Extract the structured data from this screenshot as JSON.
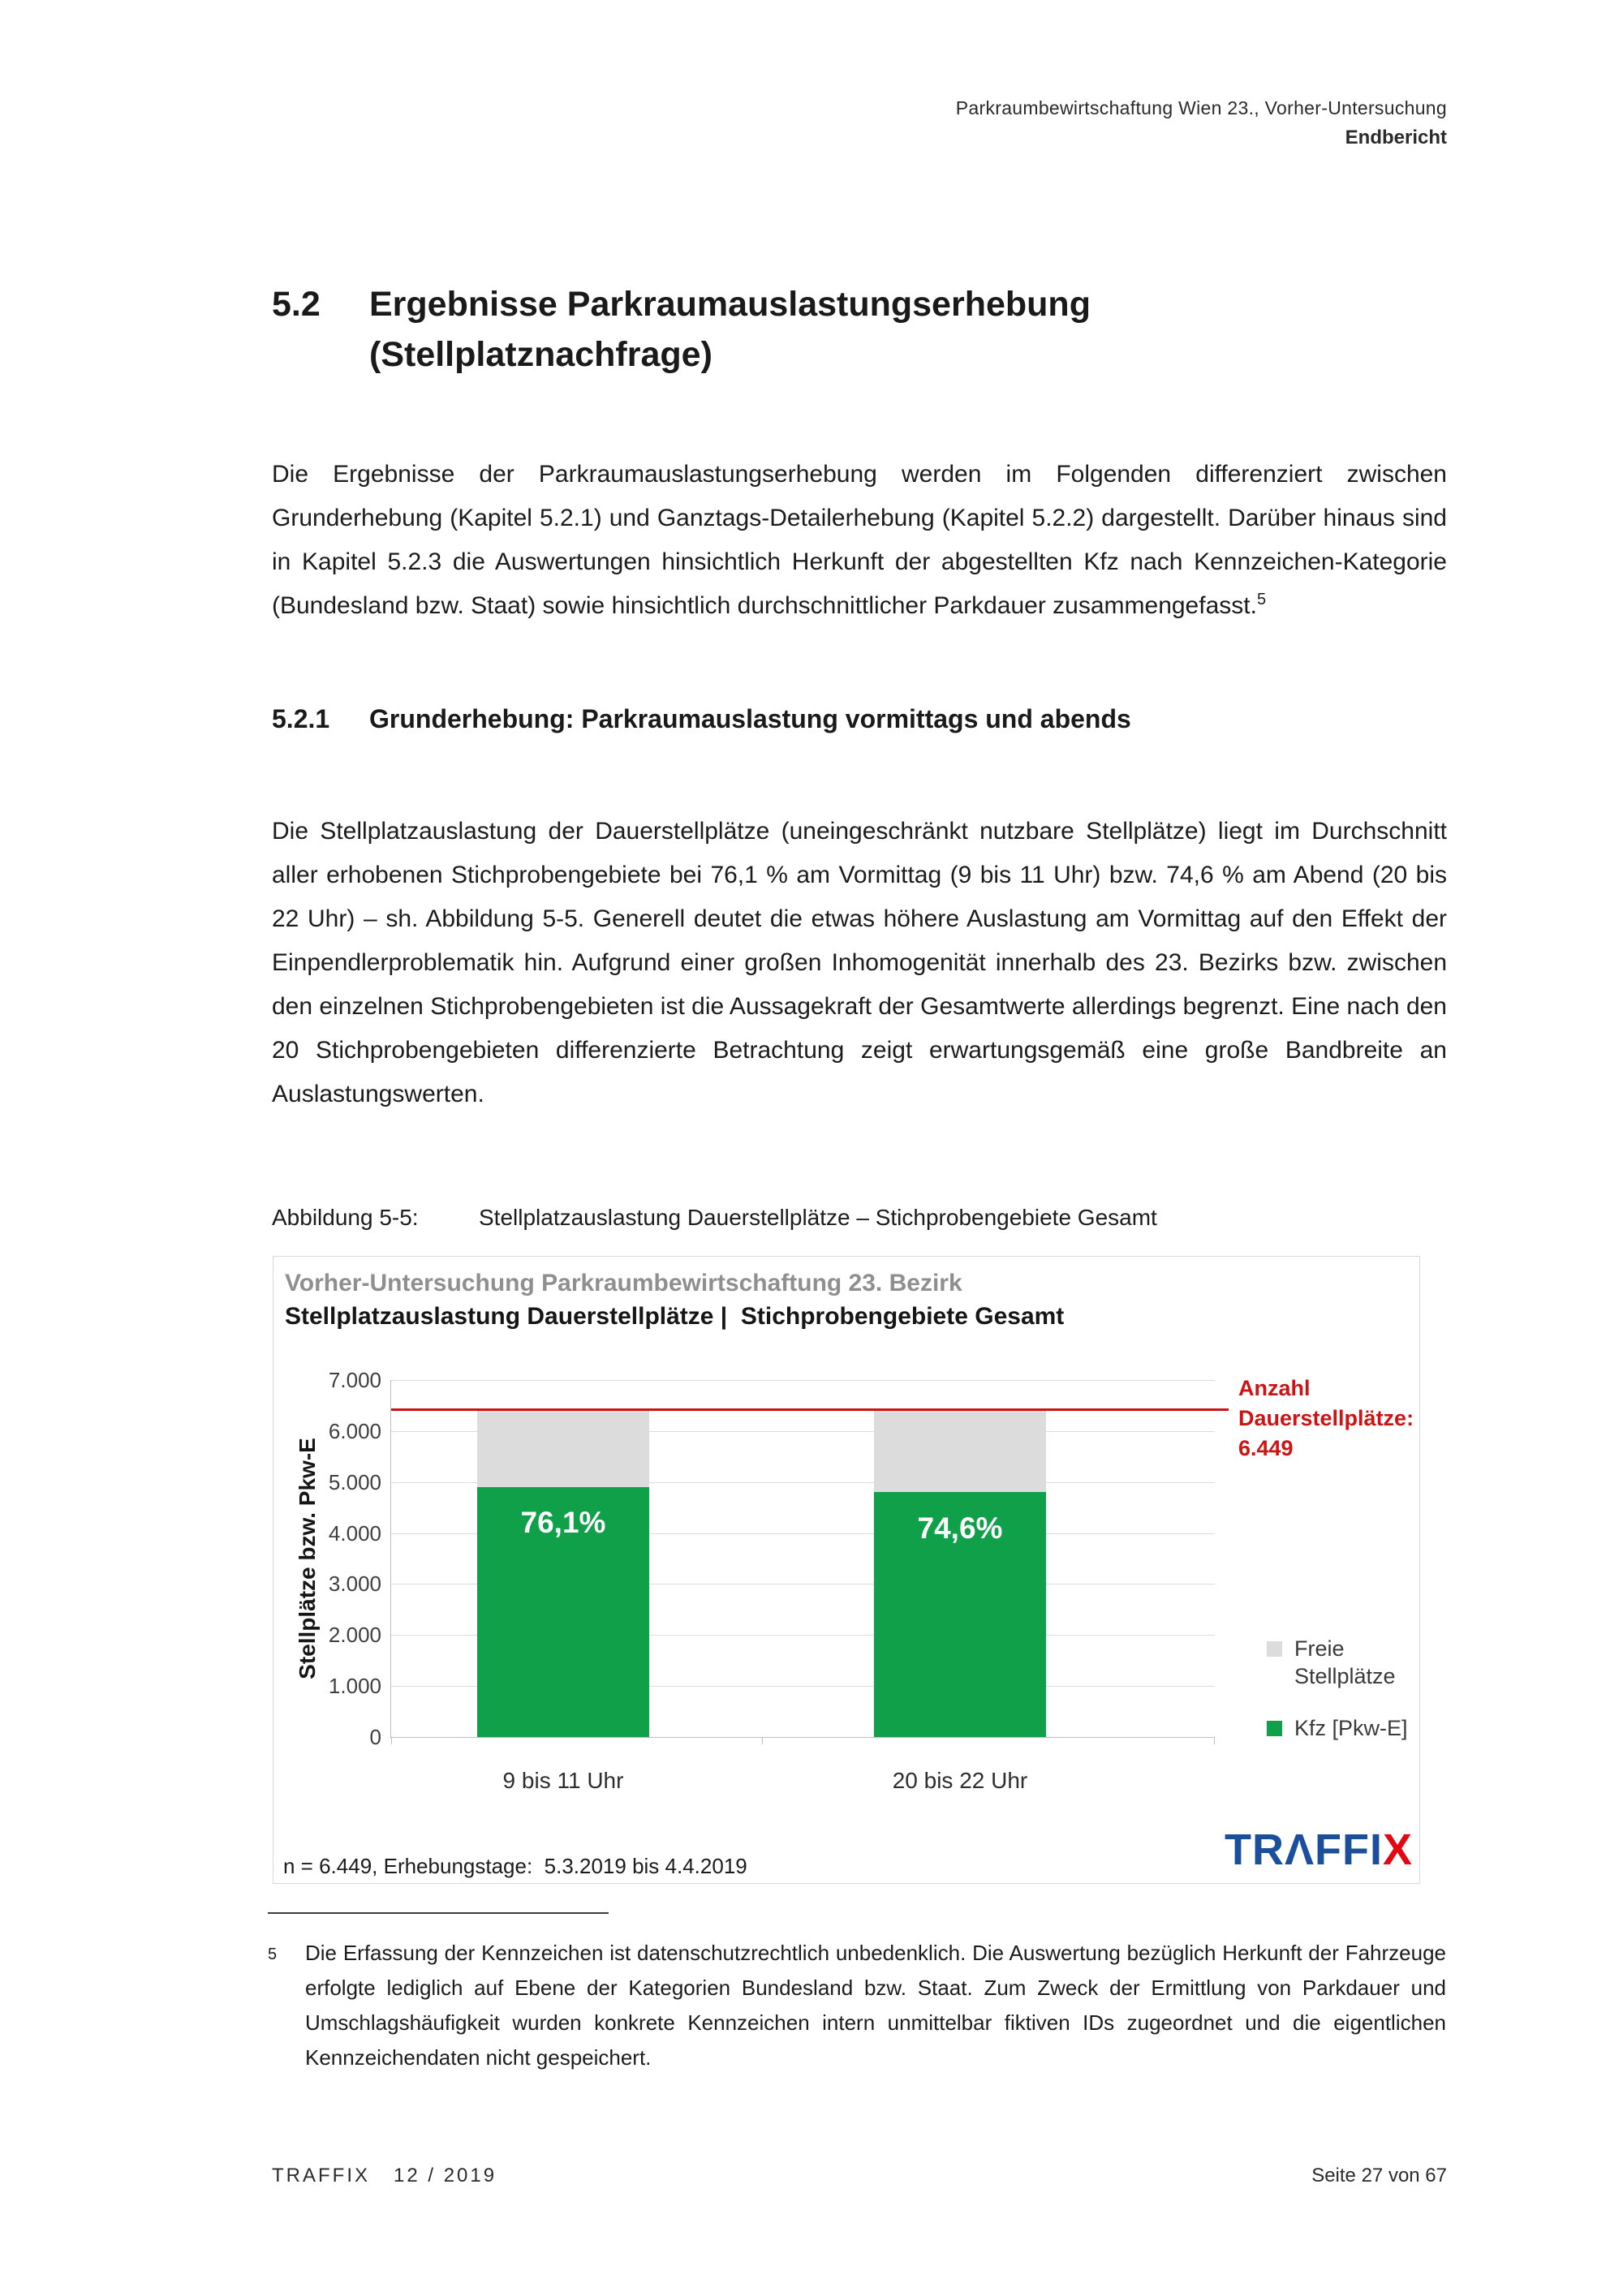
{
  "page": {
    "header": {
      "line1": "Parkraumbewirtschaftung Wien 23., Vorher-Untersuchung",
      "line2": "Endbericht"
    },
    "section": {
      "number": "5.2",
      "title_line1": "Ergebnisse Parkraumauslastungserhebung",
      "title_line2": "(Stellplatznachfrage)"
    },
    "paragraph1": "Die Ergebnisse der Parkraumauslastungserhebung werden im Folgenden differenziert zwischen Grunderhebung (Kapitel 5.2.1) und Ganztags-Detailerhebung (Kapitel 5.2.2) dargestellt. Darüber hinaus sind in Kapitel 5.2.3 die Auswertungen hinsichtlich Herkunft der abgestellten Kfz nach Kennzeichen-Kategorie (Bundesland bzw. Staat) sowie hinsichtlich durchschnittlicher Parkdauer zusammengefasst.",
    "paragraph1_footnote_ref": "5",
    "subsection": {
      "number": "5.2.1",
      "title": "Grunderhebung: Parkraumauslastung vormittags und abends"
    },
    "paragraph2": "Die Stellplatzauslastung der Dauerstellplätze (uneingeschränkt nutzbare Stellplätze) liegt im Durchschnitt aller erhobenen Stichprobengebiete bei 76,1 % am Vormittag (9 bis 11 Uhr) bzw. 74,6 % am Abend (20 bis 22 Uhr) – sh. Abbildung 5-5. Generell deutet die etwas höhere Auslastung am Vormittag auf den Effekt der Einpendlerproblematik hin. Aufgrund einer großen Inhomogenität innerhalb des 23. Bezirks bzw. zwischen den einzelnen Stichprobengebieten ist die Aussagekraft der Gesamtwerte allerdings begrenzt. Eine nach den 20 Stichprobengebieten differenzierte Betrachtung zeigt erwartungsgemäß eine große Bandbreite an Auslastungswerten.",
    "figure_caption": {
      "label": "Abbildung 5-5:",
      "text": "Stellplatzauslastung Dauerstellplätze – Stichprobengebiete Gesamt"
    },
    "footnote": {
      "marker": "5",
      "text": "Die Erfassung der Kennzeichen ist datenschutzrechtlich unbedenklich. Die Auswertung bezüglich Herkunft der Fahrzeuge erfolgte lediglich auf Ebene der Kategorien Bundesland bzw. Staat. Zum Zweck der Ermittlung von Parkdauer und Umschlagshäufigkeit wurden konkrete Kennzeichen intern unmittelbar fiktiven IDs zugeordnet und die eigentlichen Kennzeichendaten nicht gespeichert."
    },
    "footer": {
      "left": "TRAFFIX   12 / 2019",
      "right": "Seite 27 von 67"
    }
  },
  "figure": {
    "title": "Vorher-Untersuchung Parkraumbewirtschaftung 23. Bezirk",
    "subtitle": "Stellplatzauslastung Dauerstellplätze |  Stichprobengebiete Gesamt",
    "y_axis_label": "Stellplätze bzw. Pkw-E",
    "y_ticks": [
      "7.000",
      "6.000",
      "5.000",
      "4.000",
      "3.000",
      "2.000",
      "1.000",
      "0"
    ],
    "annotation": {
      "line1": "Anzahl",
      "line2": "Dauerstellplätze:",
      "line3": "6.449"
    },
    "legend": [
      {
        "label": "Freie Stellplätze",
        "color": "#dcdcdc"
      },
      {
        "label": "Kfz [Pkw-E]",
        "color": "#10a04a"
      }
    ],
    "note": "n = 6.449, Erhebungstage:  5.3.2019 bis 4.4.2019",
    "logo": {
      "blue_part": "TRΛFFI",
      "red_part": "X",
      "name": "TRAFFIX"
    },
    "colors": {
      "bar_green": "#10a04a",
      "bar_gray": "#dcdcdc",
      "reference_red": "#c81414",
      "annotation_red": "#cc1414",
      "title_gray": "#8f8f8f",
      "logo_blue": "#1b4e9b",
      "logo_red": "#e30613"
    }
  },
  "chart_data": {
    "type": "bar",
    "stacked": true,
    "title": "Vorher-Untersuchung Parkraumbewirtschaftung 23. Bezirk",
    "subtitle": "Stellplatzauslastung Dauerstellplätze | Stichprobengebiete Gesamt",
    "categories": [
      "9 bis 11 Uhr",
      "20 bis 22 Uhr"
    ],
    "series": [
      {
        "name": "Kfz [Pkw-E]",
        "values": [
          4908,
          4811
        ],
        "color": "#10a04a"
      },
      {
        "name": "Freie Stellplätze",
        "values": [
          1541,
          1638
        ],
        "color": "#dcdcdc"
      }
    ],
    "bar_value_labels": [
      "76,1%",
      "74,6%"
    ],
    "bar_value_percent": [
      76.1,
      74.6
    ],
    "reference_line": {
      "value": 6449,
      "label": "Anzahl Dauerstellplätze: 6.449",
      "color": "#c81414"
    },
    "xlabel": "",
    "ylabel": "Stellplätze bzw. Pkw-E",
    "ylim": [
      0,
      7000
    ],
    "y_tick_step": 1000,
    "grid": true,
    "legend_position": "right",
    "note": "n = 6.449, Erhebungstage: 5.3.2019 bis 4.4.2019"
  }
}
